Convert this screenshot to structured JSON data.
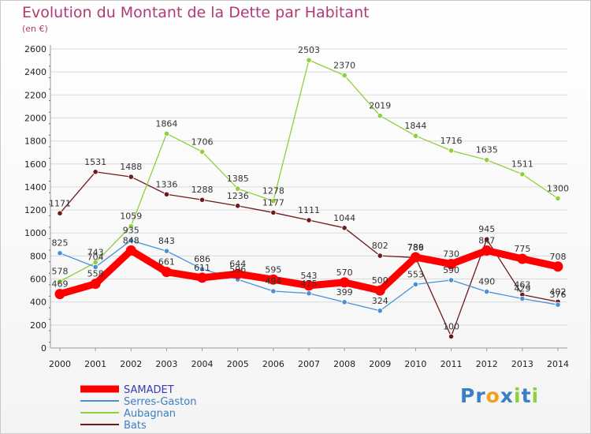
{
  "chart_data": {
    "type": "line",
    "title": "Evolution du Montant de la Dette par Habitant",
    "unit": "(en €)",
    "categories": [
      "2000",
      "2001",
      "2002",
      "2003",
      "2004",
      "2005",
      "2006",
      "2007",
      "2008",
      "2009",
      "2010",
      "2011",
      "2012",
      "2013",
      "2014"
    ],
    "ylim": [
      0,
      2600
    ],
    "yticks": [
      0,
      200,
      400,
      600,
      800,
      1000,
      1200,
      1400,
      1600,
      1800,
      2000,
      2200,
      2400,
      2600
    ],
    "grid": true,
    "legend_position": "bottom-left",
    "series": [
      {
        "name": "SAMADET",
        "color": "#ff0000",
        "values": [
          469,
          558,
          848,
          661,
          611,
          644,
          595,
          543,
          570,
          500,
          789,
          730,
          847,
          775,
          708
        ]
      },
      {
        "name": "Serres-Gaston",
        "color": "#4a90d9",
        "values": [
          825,
          704,
          935,
          843,
          686,
          596,
          494,
          475,
          399,
          324,
          553,
          590,
          490,
          429,
          376
        ]
      },
      {
        "name": "Aubagnan",
        "color": "#8ed03c",
        "values": [
          578,
          743,
          1059,
          1864,
          1706,
          1385,
          1278,
          2503,
          2370,
          2019,
          1844,
          1716,
          1635,
          1511,
          1300
        ]
      },
      {
        "name": "Bats",
        "color": "#6e1a1a",
        "values": [
          1171,
          1531,
          1488,
          1336,
          1288,
          1236,
          1177,
          1111,
          1044,
          802,
          786,
          100,
          945,
          463,
          402
        ]
      }
    ]
  },
  "brand": {
    "letters": [
      {
        "ch": "P",
        "color": "#3a7fc4"
      },
      {
        "ch": "r",
        "color": "#3a7fc4"
      },
      {
        "ch": "o",
        "color": "#f0a020"
      },
      {
        "ch": "x",
        "color": "#3a7fc4"
      },
      {
        "ch": "i",
        "color": "#8ed03c"
      },
      {
        "ch": "t",
        "color": "#3a7fc4"
      },
      {
        "ch": "i",
        "color": "#8ed03c"
      }
    ]
  }
}
